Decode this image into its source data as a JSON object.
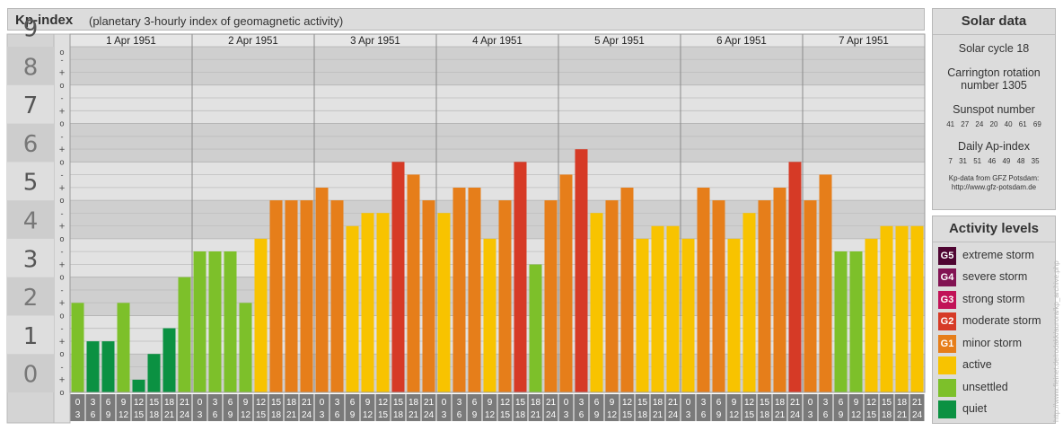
{
  "header": {
    "title": "Kp-index",
    "subtitle": "(planetary 3-hourly index of geomagnetic activity)"
  },
  "chart_data": {
    "type": "bar",
    "title": "Kp-index",
    "subtitle": "(planetary 3-hourly index of geomagnetic activity)",
    "y_range": [
      0,
      9
    ],
    "y_tick_labels": [
      "0",
      "1",
      "2",
      "3",
      "4",
      "5",
      "6",
      "7",
      "8",
      "9"
    ],
    "y_sub_labels": [
      "o",
      "+",
      "-",
      "o"
    ],
    "days": [
      "1 Apr 1951",
      "2 Apr 1951",
      "3 Apr 1951",
      "4 Apr 1951",
      "5 Apr 1951",
      "6 Apr 1951",
      "7 Apr 1951"
    ],
    "interval_top": [
      "0",
      "3",
      "6",
      "9",
      "12",
      "15",
      "18",
      "21"
    ],
    "interval_bottom": [
      "3",
      "6",
      "9",
      "12",
      "15",
      "18",
      "21",
      "24"
    ],
    "values": [
      2.33,
      1.33,
      1.33,
      2.33,
      0.33,
      1.0,
      1.67,
      3.0,
      3.67,
      3.67,
      3.67,
      2.33,
      4.0,
      5.0,
      5.0,
      5.0,
      5.33,
      5.0,
      4.33,
      4.67,
      4.67,
      6.0,
      5.67,
      5.0,
      4.67,
      5.33,
      5.33,
      4.0,
      5.0,
      6.0,
      3.33,
      5.0,
      5.67,
      6.33,
      4.67,
      5.0,
      5.33,
      4.0,
      4.33,
      4.33,
      4.0,
      5.33,
      5.0,
      4.0,
      4.67,
      5.0,
      5.33,
      6.0,
      5.0,
      5.67,
      3.67,
      3.67,
      4.0,
      4.33,
      4.33,
      4.33
    ],
    "colors": {
      "quiet": "#0b9142",
      "unsettled": "#7dc02a",
      "active": "#f8c300",
      "g1": "#e67e1a",
      "g2": "#d63a26",
      "g3": "#c11257",
      "g4": "#821353",
      "g5": "#4f0532"
    }
  },
  "solar": {
    "title": "Solar data",
    "cycle": "Solar cycle 18",
    "carrington_1": "Carrington rotation",
    "carrington_2": "number 1305",
    "sunspot_title": "Sunspot number",
    "sunspot_values": "41 27 24 20 40 61 69",
    "ap_title": "Daily Ap-index",
    "ap_values": "7 31 51 46 49 48 35",
    "credit_1": "Kp-data from GFZ Potsdam:",
    "credit_2": "http://www.gfz-potsdam.de"
  },
  "levels": {
    "title": "Activity levels",
    "items": [
      {
        "badge": "G5",
        "label": "extreme storm",
        "color": "#4f0532"
      },
      {
        "badge": "G4",
        "label": "severe storm",
        "color": "#821353"
      },
      {
        "badge": "G3",
        "label": "strong storm",
        "color": "#c11257"
      },
      {
        "badge": "G2",
        "label": "moderate storm",
        "color": "#d63a26"
      },
      {
        "badge": "G1",
        "label": "minor storm",
        "color": "#e67e1a"
      },
      {
        "badge": "",
        "label": "active",
        "color": "#f8c300"
      },
      {
        "badge": "",
        "label": "unsettled",
        "color": "#7dc02a"
      },
      {
        "badge": "",
        "label": "quiet",
        "color": "#0b9142"
      }
    ]
  },
  "watermark": "http://www.fleinet.de/rodakk/aurora/kp_archive.php"
}
